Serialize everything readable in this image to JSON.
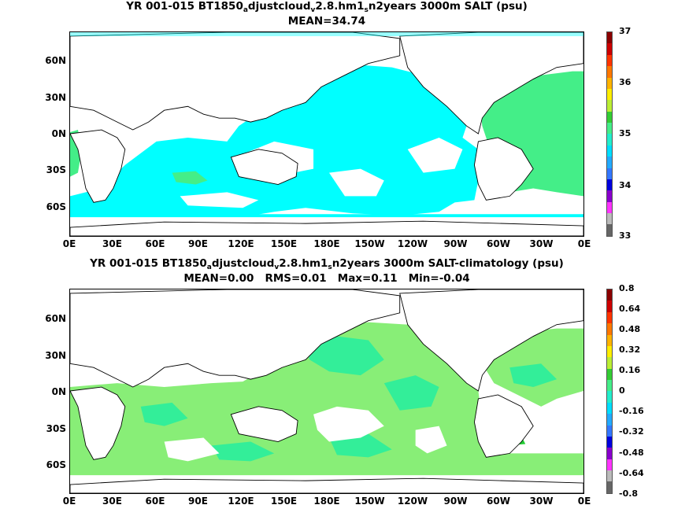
{
  "panel1": {
    "title_prefix": "YR 001-015 BT1850",
    "title_sub_a": "a",
    "title_mid": "djustcloud",
    "title_sub_v": "v",
    "title_mid2": "2.8.hm1",
    "title_sub_s": "s",
    "title_suffix": "n2years 3000m SALT (psu)",
    "stats": "MEAN=34.74",
    "colorbar_labels": [
      "37",
      "36",
      "35",
      "34",
      "33"
    ],
    "colorbar_colors": [
      "#8b0000",
      "#cc0000",
      "#ff3300",
      "#ff7700",
      "#ffb300",
      "#ffee00",
      "#bbee33",
      "#33cc33",
      "#44ee88",
      "#22eecc",
      "#00ddff",
      "#22aaff",
      "#3377ff",
      "#0000dd",
      "#8800cc",
      "#ff33ff",
      "#bbbbbb",
      "#666666"
    ]
  },
  "panel2": {
    "title_prefix": "YR 001-015 BT1850",
    "title_sub_a": "a",
    "title_mid": "djustcloud",
    "title_sub_v": "v",
    "title_mid2": "2.8.hm1",
    "title_sub_s": "s",
    "title_suffix": "n2years 3000m SALT-climatology (psu)",
    "stats": "MEAN=0.00   RMS=0.01   Max=0.11   Min=-0.04",
    "colorbar_labels": [
      "0.8",
      "0.64",
      "0.48",
      "0.32",
      "0.16",
      "0",
      "-0.16",
      "-0.32",
      "-0.48",
      "-0.64",
      "-0.8"
    ],
    "colorbar_colors": [
      "#8b0000",
      "#cc0000",
      "#ff3300",
      "#ff7700",
      "#ffb300",
      "#ffee00",
      "#bbee33",
      "#33cc33",
      "#44ee88",
      "#22eecc",
      "#00ddff",
      "#22aaff",
      "#3377ff",
      "#0000dd",
      "#8800cc",
      "#ff33ff",
      "#bbbbbb",
      "#666666"
    ]
  },
  "axes": {
    "lat_labels": [
      "60N",
      "30N",
      "0N",
      "30S",
      "60S"
    ],
    "lon_labels": [
      "0E",
      "30E",
      "60E",
      "90E",
      "120E",
      "150E",
      "180E",
      "150W",
      "120W",
      "90W",
      "60W",
      "30W",
      "0E"
    ]
  },
  "colors": {
    "land": "#ffffff",
    "ocean_cyan": "#00ffff",
    "ocean_green": "#44ee88",
    "anomaly_green": "#88ee77",
    "anomaly_teal": "#33ee99",
    "coast": "#000000"
  }
}
